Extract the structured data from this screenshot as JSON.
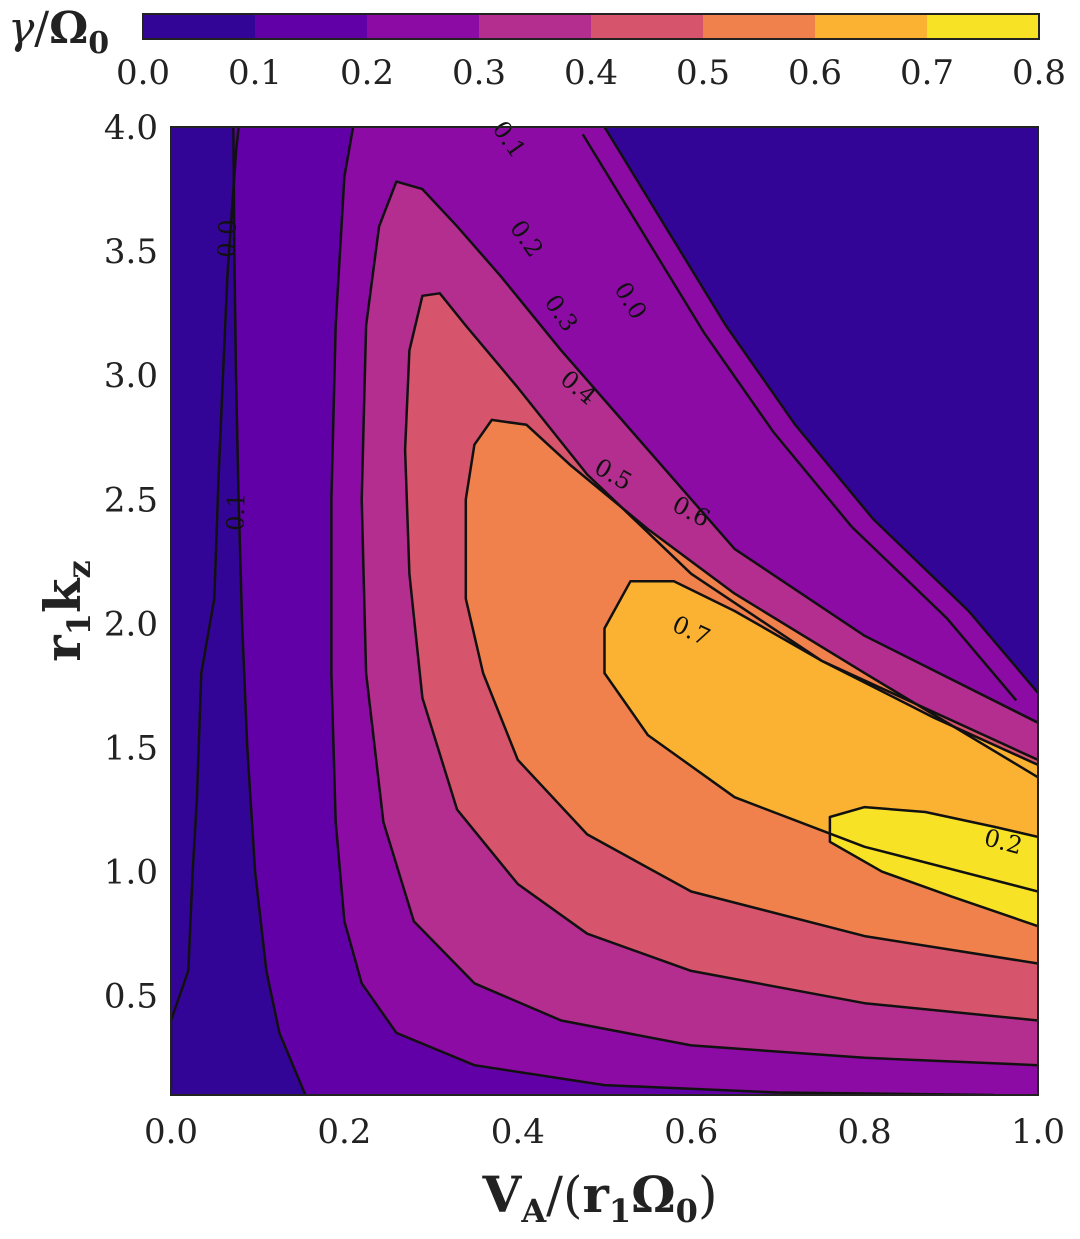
{
  "chart_data": {
    "type": "contour",
    "xlabel": "V_A/(r_1Ω_0)",
    "ylabel": "r_1k_z",
    "colorbar_label": "γ/Ω_0",
    "xlim": [
      0.0,
      1.0
    ],
    "ylim": [
      0.1,
      4.0
    ],
    "x_ticks": [
      "0.0",
      "0.2",
      "0.4",
      "0.6",
      "0.8",
      "1.0"
    ],
    "y_ticks": [
      "0.5",
      "1.0",
      "1.5",
      "2.0",
      "2.5",
      "3.0",
      "3.5",
      "4.0"
    ],
    "colorbar": {
      "ticks": [
        "0.0",
        "0.1",
        "0.2",
        "0.3",
        "0.4",
        "0.5",
        "0.6",
        "0.7",
        "0.8"
      ],
      "levels": [
        0.0,
        0.1,
        0.2,
        0.3,
        0.4,
        0.5,
        0.6,
        0.7,
        0.8
      ],
      "colors": [
        "#330597",
        "#6100a7",
        "#8d0ba5",
        "#b42e8f",
        "#d6556d",
        "#f0804c",
        "#fbb232",
        "#f7e225"
      ]
    },
    "contour_labels": [
      {
        "text": "0.0",
        "level": 0.0
      },
      {
        "text": "0.1",
        "level": 0.1
      },
      {
        "text": "0.0",
        "level": 0.0
      },
      {
        "text": "0.1",
        "level": 0.1
      },
      {
        "text": "0.2",
        "level": 0.2
      },
      {
        "text": "0.3",
        "level": 0.3
      },
      {
        "text": "0.4",
        "level": 0.4
      },
      {
        "text": "0.5",
        "level": 0.5
      },
      {
        "text": "0.6",
        "level": 0.6
      },
      {
        "text": "0.7",
        "level": 0.7
      },
      {
        "text": "0.2",
        "level": 0.2
      }
    ],
    "contour_lines": [
      {
        "level": 0.1,
        "points": [
          [
            0.155,
            0.1
          ],
          [
            0.125,
            0.35
          ],
          [
            0.11,
            0.6
          ],
          [
            0.097,
            1.0
          ],
          [
            0.088,
            1.5
          ],
          [
            0.082,
            2.0
          ],
          [
            0.078,
            2.5
          ],
          [
            0.075,
            3.0
          ],
          [
            0.073,
            3.5
          ],
          [
            0.072,
            4.0
          ]
        ]
      },
      {
        "level": 0.2,
        "points": [
          [
            0.95,
            0.1
          ],
          [
            0.7,
            0.11
          ],
          [
            0.5,
            0.14
          ],
          [
            0.35,
            0.22
          ],
          [
            0.26,
            0.35
          ],
          [
            0.22,
            0.55
          ],
          [
            0.2,
            0.8
          ],
          [
            0.19,
            1.2
          ],
          [
            0.185,
            1.8
          ],
          [
            0.185,
            2.5
          ],
          [
            0.19,
            3.2
          ],
          [
            0.2,
            3.8
          ],
          [
            0.21,
            4.0
          ]
        ]
      },
      {
        "level": 0.3,
        "points": [
          [
            1.0,
            0.22
          ],
          [
            0.8,
            0.25
          ],
          [
            0.6,
            0.3
          ],
          [
            0.45,
            0.4
          ],
          [
            0.35,
            0.55
          ],
          [
            0.28,
            0.8
          ],
          [
            0.245,
            1.2
          ],
          [
            0.225,
            1.8
          ],
          [
            0.22,
            2.5
          ],
          [
            0.225,
            3.2
          ],
          [
            0.24,
            3.6
          ],
          [
            0.26,
            3.78
          ],
          [
            0.29,
            3.75
          ],
          [
            0.33,
            3.6
          ],
          [
            0.38,
            3.4
          ],
          [
            0.45,
            3.1
          ],
          [
            0.55,
            2.7
          ],
          [
            0.65,
            2.3
          ],
          [
            0.8,
            1.95
          ],
          [
            1.0,
            1.6
          ]
        ]
      },
      {
        "level": 0.4,
        "points": [
          [
            1.0,
            0.4
          ],
          [
            0.8,
            0.47
          ],
          [
            0.6,
            0.6
          ],
          [
            0.48,
            0.75
          ],
          [
            0.4,
            0.95
          ],
          [
            0.33,
            1.25
          ],
          [
            0.29,
            1.7
          ],
          [
            0.275,
            2.2
          ],
          [
            0.27,
            2.7
          ],
          [
            0.275,
            3.1
          ],
          [
            0.29,
            3.32
          ],
          [
            0.31,
            3.33
          ],
          [
            0.34,
            3.2
          ],
          [
            0.4,
            2.95
          ],
          [
            0.48,
            2.6
          ],
          [
            0.6,
            2.2
          ],
          [
            0.75,
            1.85
          ],
          [
            1.0,
            1.45
          ]
        ]
      },
      {
        "level": 0.5,
        "points": [
          [
            1.0,
            0.63
          ],
          [
            0.8,
            0.74
          ],
          [
            0.6,
            0.92
          ],
          [
            0.48,
            1.15
          ],
          [
            0.4,
            1.45
          ],
          [
            0.36,
            1.8
          ],
          [
            0.34,
            2.1
          ],
          [
            0.34,
            2.5
          ],
          [
            0.35,
            2.72
          ],
          [
            0.37,
            2.82
          ],
          [
            0.41,
            2.8
          ],
          [
            0.46,
            2.64
          ],
          [
            0.55,
            2.38
          ],
          [
            0.65,
            2.12
          ],
          [
            0.8,
            1.8
          ],
          [
            1.0,
            1.38
          ]
        ]
      },
      {
        "level": 0.6,
        "points": [
          [
            1.0,
            0.92
          ],
          [
            0.8,
            1.1
          ],
          [
            0.65,
            1.3
          ],
          [
            0.55,
            1.55
          ],
          [
            0.5,
            1.8
          ],
          [
            0.5,
            1.98
          ],
          [
            0.53,
            2.17
          ],
          [
            0.58,
            2.17
          ],
          [
            0.65,
            2.05
          ],
          [
            0.75,
            1.85
          ],
          [
            0.88,
            1.62
          ],
          [
            1.0,
            1.43
          ]
        ]
      },
      {
        "level": 0.7,
        "points": [
          [
            1.0,
            0.78
          ],
          [
            0.9,
            0.9
          ],
          [
            0.82,
            1.0
          ],
          [
            0.76,
            1.12
          ],
          [
            0.76,
            1.22
          ],
          [
            0.8,
            1.26
          ],
          [
            0.87,
            1.24
          ],
          [
            0.95,
            1.18
          ],
          [
            1.0,
            1.14
          ]
        ]
      }
    ],
    "zero_boundary": [
      [
        0.5,
        4.0
      ],
      [
        0.57,
        3.6
      ],
      [
        0.64,
        3.2
      ],
      [
        0.72,
        2.8
      ],
      [
        0.81,
        2.42
      ],
      [
        0.92,
        2.05
      ],
      [
        1.0,
        1.72
      ]
    ],
    "zero_left_boundary": [
      [
        0.0,
        0.12
      ],
      [
        0.0,
        0.4
      ],
      [
        0.02,
        0.6
      ],
      [
        0.025,
        1.0
      ],
      [
        0.03,
        1.3
      ],
      [
        0.035,
        1.8
      ],
      [
        0.05,
        2.1
      ],
      [
        0.055,
        2.6
      ],
      [
        0.06,
        3.0
      ],
      [
        0.065,
        3.4
      ],
      [
        0.075,
        3.9
      ],
      [
        0.078,
        4.0
      ]
    ]
  }
}
